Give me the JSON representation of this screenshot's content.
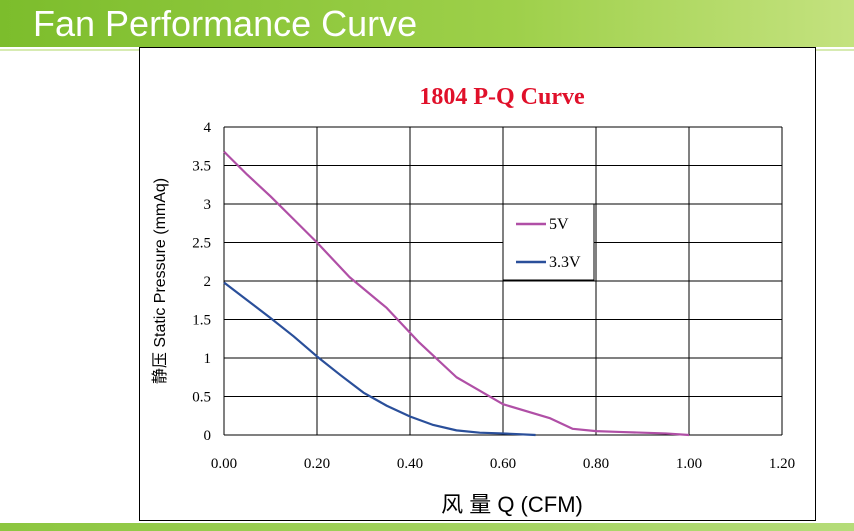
{
  "header": {
    "title": "Fan Performance Curve",
    "color": "#8cc63f"
  },
  "chart_data": {
    "type": "line",
    "title": "1804 P-Q Curve",
    "xlabel": "风 量 Q (CFM)",
    "ylabel": "静压 Static Pressure (mmAq)",
    "xlim": [
      0,
      1.2
    ],
    "ylim": [
      0,
      4
    ],
    "x_ticks": [
      "0.00",
      "0.20",
      "0.40",
      "0.60",
      "0.80",
      "1.00",
      "1.20"
    ],
    "y_ticks": [
      "0",
      "0.5",
      "1",
      "1.5",
      "2",
      "2.5",
      "3",
      "3.5",
      "4"
    ],
    "grid": true,
    "legend_position": "top-right",
    "series": [
      {
        "name": "5V",
        "color": "#b04fa6",
        "x": [
          0.0,
          0.05,
          0.1,
          0.15,
          0.2,
          0.27,
          0.35,
          0.42,
          0.5,
          0.6,
          0.7,
          0.75,
          0.8,
          0.85,
          0.9,
          0.95,
          1.0
        ],
        "y": [
          3.68,
          3.38,
          3.1,
          2.8,
          2.5,
          2.05,
          1.65,
          1.2,
          0.75,
          0.4,
          0.22,
          0.08,
          0.05,
          0.04,
          0.03,
          0.02,
          0.0
        ]
      },
      {
        "name": "3.3V",
        "color": "#2a4f9a",
        "x": [
          0.0,
          0.05,
          0.1,
          0.15,
          0.2,
          0.25,
          0.3,
          0.35,
          0.4,
          0.45,
          0.5,
          0.55,
          0.6,
          0.67
        ],
        "y": [
          1.98,
          1.75,
          1.52,
          1.28,
          1.02,
          0.78,
          0.55,
          0.38,
          0.24,
          0.13,
          0.06,
          0.03,
          0.02,
          0.0
        ]
      }
    ]
  }
}
